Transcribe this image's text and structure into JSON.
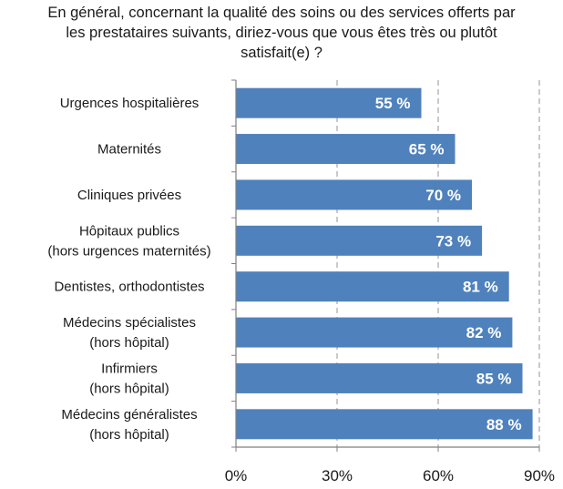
{
  "chart_data": {
    "type": "bar",
    "orientation": "horizontal",
    "title_lines": [
      "En général, concernant la qualité des soins ou des services offerts par",
      "les prestataires suivants, diriez-vous que vous êtes très ou plutôt",
      "satisfait(e) ?"
    ],
    "categories": [
      [
        "Urgences hospitalières"
      ],
      [
        "Maternités"
      ],
      [
        "Cliniques privées"
      ],
      [
        "Hôpitaux publics",
        "(hors urgences maternités)"
      ],
      [
        "Dentistes, orthodontistes"
      ],
      [
        "Médecins spécialistes",
        "(hors hôpital)"
      ],
      [
        "Infirmiers",
        "(hors hôpital)"
      ],
      [
        "Médecins généralistes",
        "(hors hôpital)"
      ]
    ],
    "values": [
      55,
      65,
      70,
      73,
      81,
      82,
      85,
      88
    ],
    "value_labels": [
      "55 %",
      "65 %",
      "70 %",
      "73 %",
      "81 %",
      "82 %",
      "85 %",
      "88 %"
    ],
    "xlim": [
      0,
      90
    ],
    "xticks": [
      0,
      30,
      60,
      90
    ],
    "xtick_labels": [
      "0%",
      "30%",
      "60%",
      "90%"
    ],
    "grid": "vertical dashed",
    "bar_color": "#4f81bd",
    "grid_color": "#a6a6a6"
  }
}
